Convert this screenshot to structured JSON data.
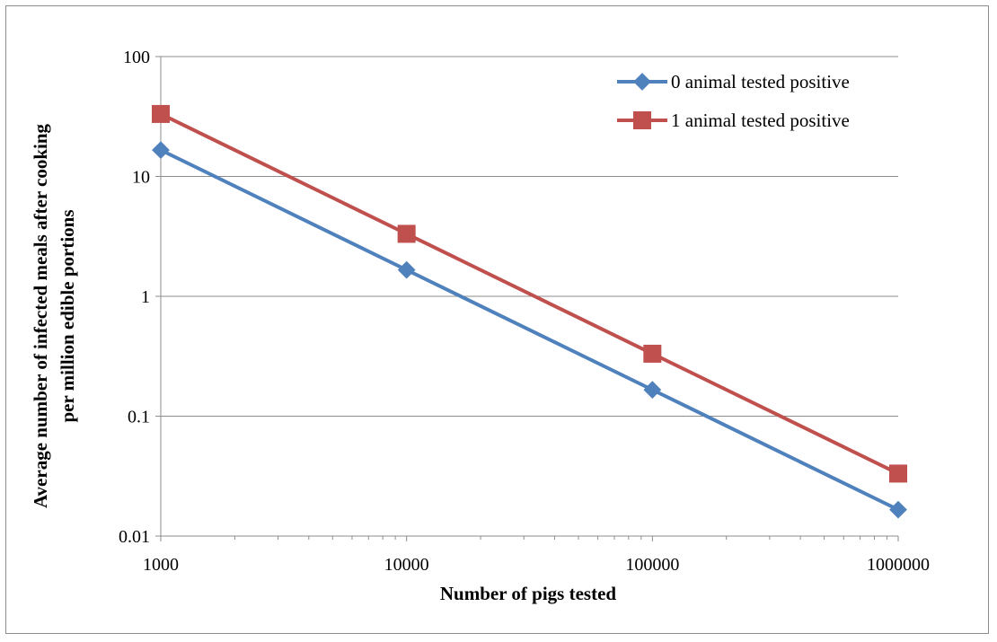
{
  "chart_data": {
    "type": "line",
    "title": "",
    "xlabel": "Number of pigs tested",
    "ylabel_lines": [
      "Average number of infected meals after cooking",
      "per million edible portions"
    ],
    "x_scale": "log",
    "y_scale": "log",
    "x": [
      1000,
      10000,
      100000,
      1000000
    ],
    "x_tick_labels": [
      "1000",
      "10000",
      "100000",
      "1000000"
    ],
    "y_ticks": [
      0.01,
      0.1,
      1,
      10,
      100
    ],
    "y_tick_labels": [
      "0.01",
      "0.1",
      "1",
      "10",
      "100"
    ],
    "ylim": [
      0.01,
      100
    ],
    "grid": "horizontal major gridlines",
    "legend_position": "top-right",
    "series": [
      {
        "name": "0 animal tested positive",
        "values": [
          16.6,
          1.66,
          0.166,
          0.0166
        ],
        "color": "#4f81bd",
        "marker": "diamond"
      },
      {
        "name": "1 animal tested positive",
        "values": [
          33.2,
          3.32,
          0.332,
          0.0332
        ],
        "color": "#c0504d",
        "marker": "square"
      }
    ]
  }
}
